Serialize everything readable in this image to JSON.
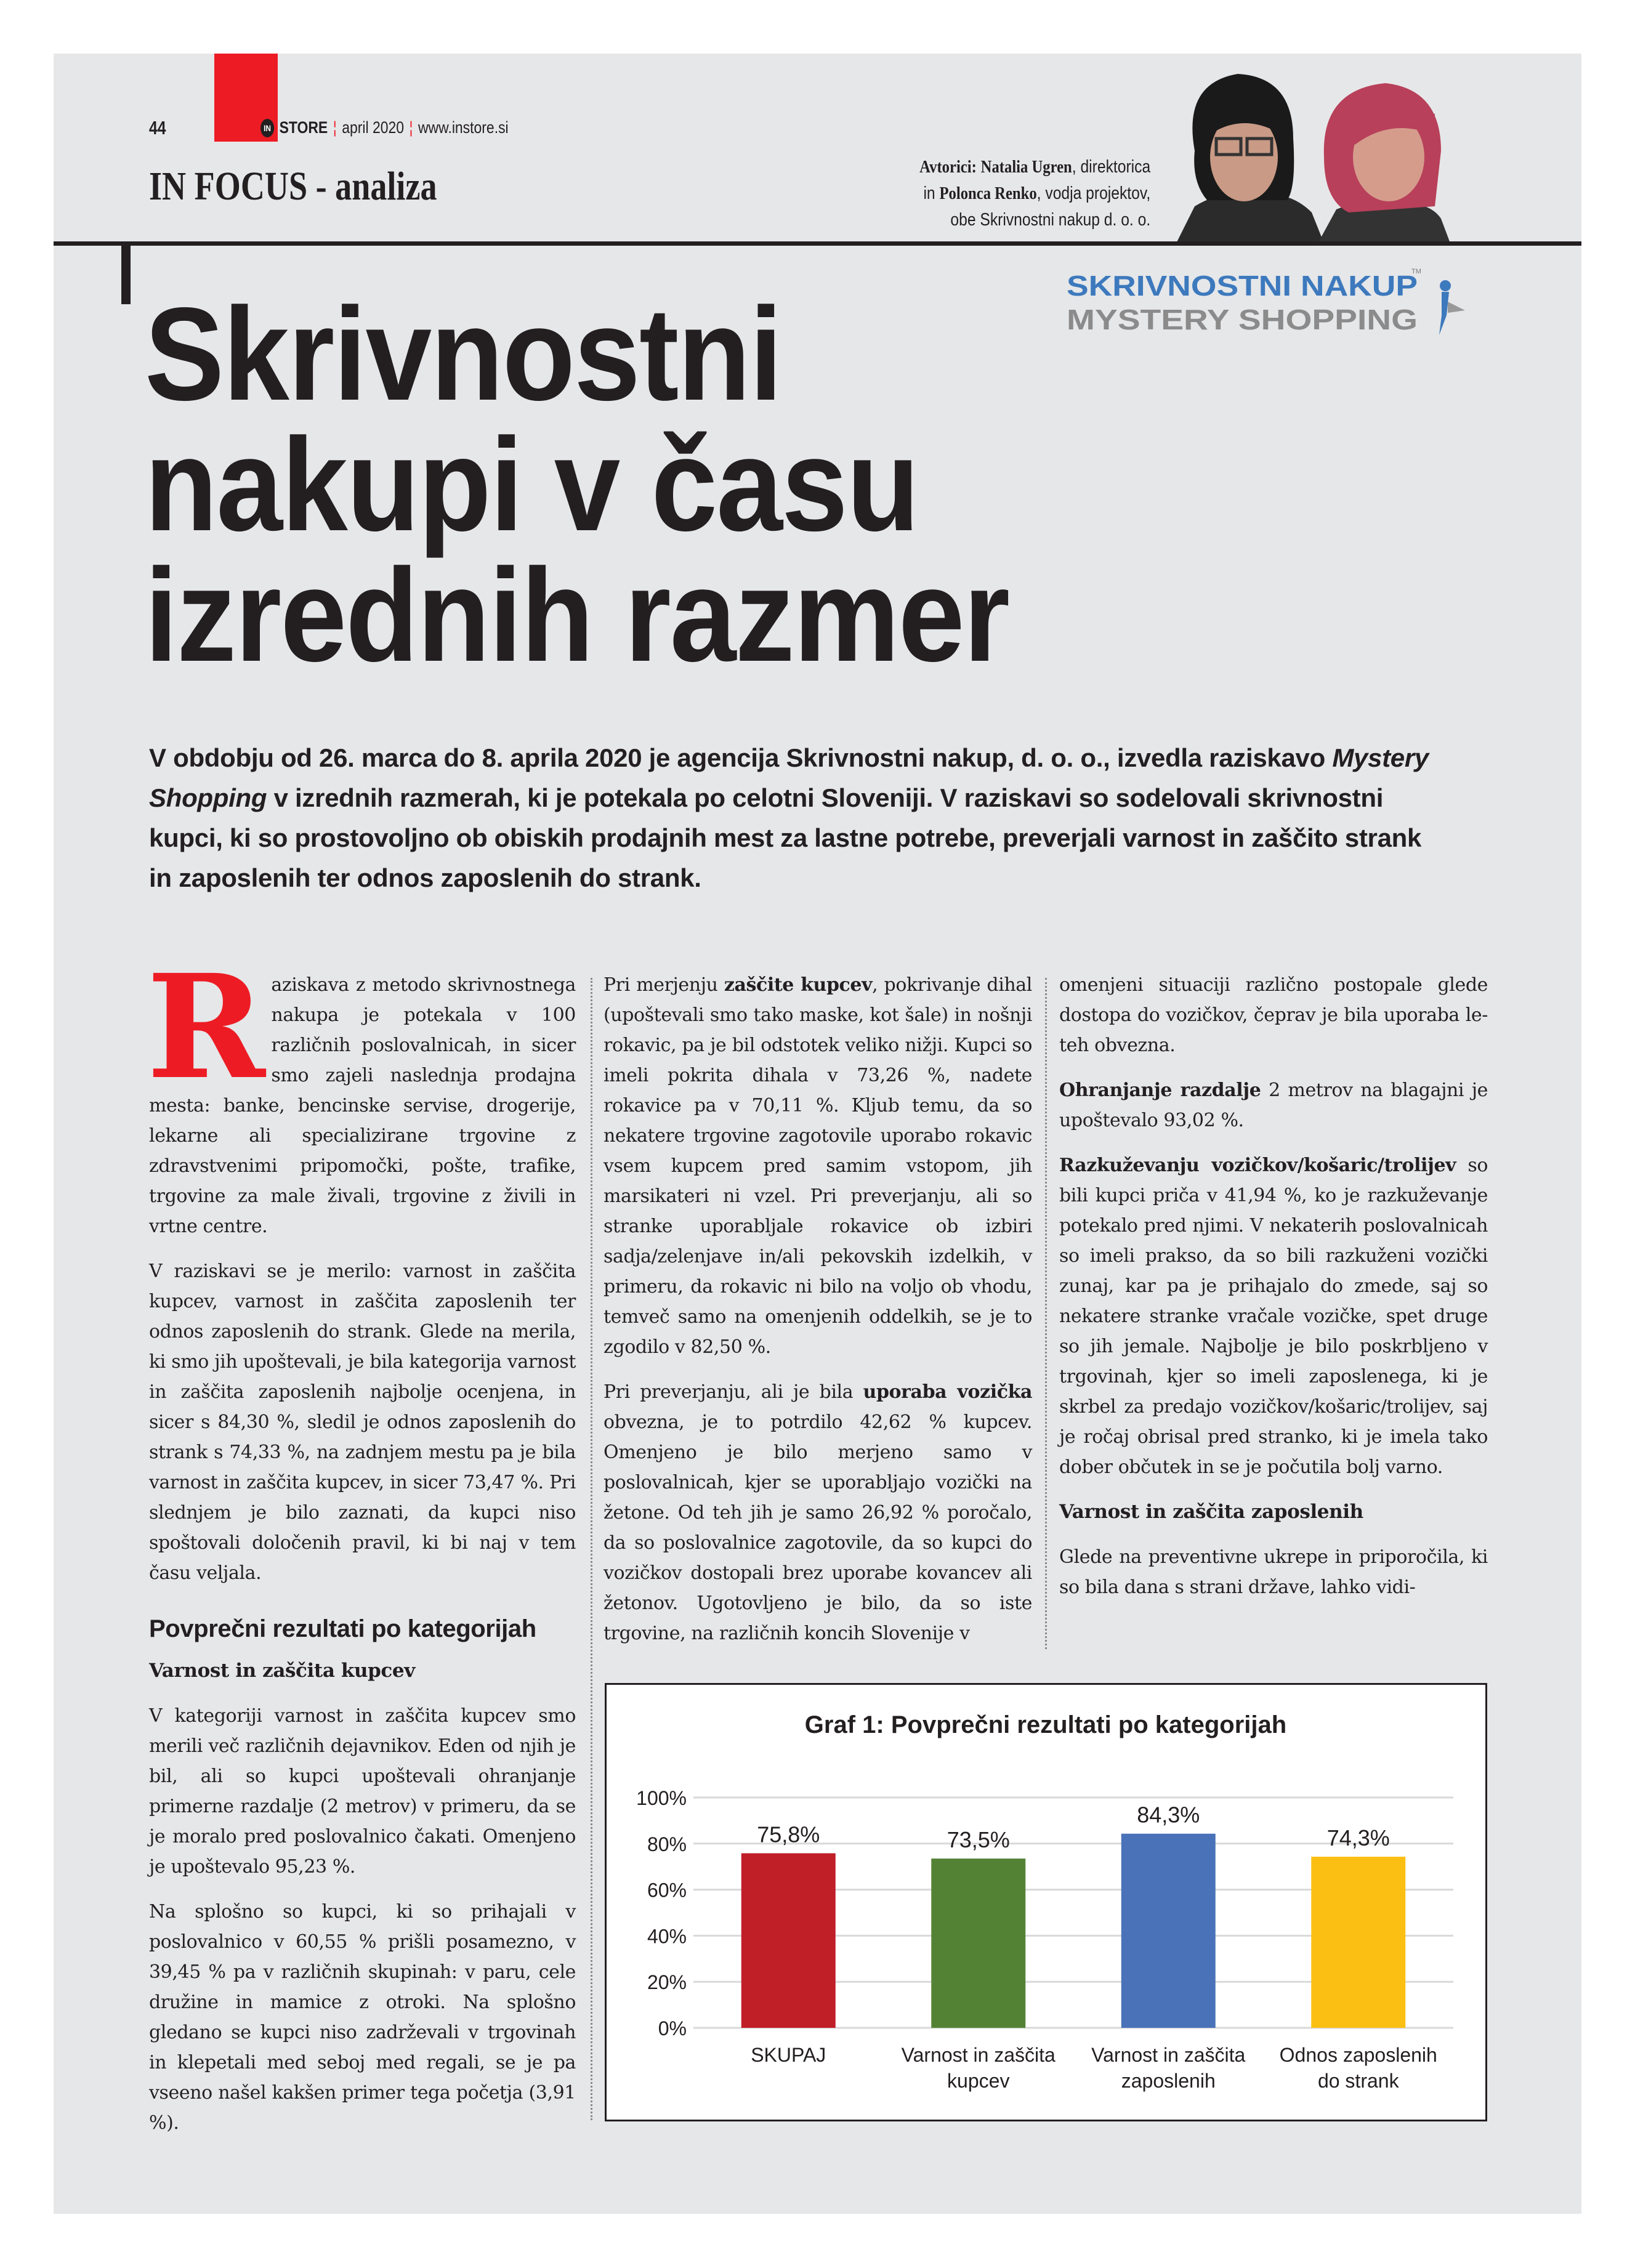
{
  "header": {
    "page_number": "44",
    "brand_badge": "IN",
    "brand": "STORE",
    "issue": "april 2020",
    "website": "www.instore.si",
    "section": "IN FOCUS - analiza",
    "accent_color": "#ed1c24"
  },
  "authors": {
    "label": "Avtorici:",
    "author1": "Natalia Ugren",
    "author1_role": ", direktorica",
    "joiner": "in ",
    "author2": "Polonca Renko",
    "author2_role": ", vodja projektov,",
    "company_line": "obe Skrivnostni nakup d. o. o."
  },
  "logo": {
    "line1": "SKRIVNOSTNI NAKUP",
    "line2": "MYSTERY SHOPPING",
    "tm": "TM"
  },
  "article": {
    "title_lines": [
      "Skrivnostni",
      "nakupi v času",
      "izrednih razmer"
    ],
    "lead": [
      {
        "t": "V obdobju od 26. marca do 8. aprila 2020 je agencija Skrivnostni nakup, d. o. o., izvedla raziskavo "
      },
      {
        "t": "Mystery Shopping",
        "i": true
      },
      {
        "t": " v izrednih razmerah, ki je potekala po celotni Sloveniji. V raziskavi so sodelovali skrivnostni kupci, ki so prostovoljno ob obiskih prodajnih mest za lastne potrebe, preverjali varnost in zaščito strank in zaposlenih ter odnos zaposlenih do strank."
      }
    ],
    "drop_cap": "R",
    "col1": [
      {
        "type": "p",
        "runs": [
          {
            "t": "aziskava z metodo skrivnostnega nakupa je potekala v 100 različnih poslovalnicah, in sicer smo zajeli naslednja prodajna mesta: banke, bencinske servise, drogerije, lekarne ali specializirane trgovine z zdravstvenimi pripomočki, pošte, trafike, trgovine za male živali, trgovine z živili in vrtne centre."
          }
        ]
      },
      {
        "type": "p",
        "runs": [
          {
            "t": "V raziskavi se je merilo: varnost in zaščita kupcev, varnost in zaščita zaposlenih ter odnos zaposlenih do strank. Glede na merila, ki smo jih upoštevali, je bila kategorija varnost in zaščita zaposlenih najbolje ocenjena, in sicer s 84,30 %, sledil je odnos zaposlenih do strank s 74,33 %, na zadnjem mestu pa je bila varnost in zaščita kupcev, in sicer 73,47 %. Pri slednjem je bilo zaznati, da kupci niso spoštovali določenih pravil, ki bi naj v tem času veljala."
          }
        ]
      },
      {
        "type": "h-sans",
        "text": "Povprečni rezultati po kategorijah"
      },
      {
        "type": "h-serif",
        "text": "Varnost in zaščita kupcev"
      },
      {
        "type": "p",
        "runs": [
          {
            "t": "V kategoriji varnost in zaščita kupcev smo merili več različnih dejavnikov. Eden od njih je bil, ali so kupci upoštevali ohranjanje primerne razdalje (2 metrov) v primeru, da se je moralo pred poslovalnico čakati. Omenjeno je upoštevalo 95,23 %."
          }
        ]
      },
      {
        "type": "p",
        "runs": [
          {
            "t": "Na splošno so kupci, ki so prihajali v poslovalnico v 60,55 % prišli posamezno, v 39,45 % pa v različnih skupinah: v paru, cele družine in mamice z otroki. Na splošno gledano se kupci niso zadrževali v trgovinah in klepetali med seboj med regali, se je pa vseeno našel kakšen primer tega početja (3,91 %)."
          }
        ]
      }
    ],
    "col2": [
      {
        "type": "p",
        "runs": [
          {
            "t": "Pri merjenju "
          },
          {
            "t": "zaščite kupcev",
            "b": true
          },
          {
            "t": ", pokrivanje dihal (upoštevali smo tako maske, kot šale) in nošnji rokavic, pa je bil odstotek veliko nižji. Kupci so imeli pokrita dihala v 73,26 %, nadete rokavice pa v 70,11 %. Kljub temu, da so nekatere trgovine zagotovile uporabo rokavic vsem kupcem pred samim vstopom, jih marsikateri ni vzel. Pri preverjanju, ali so stranke uporabljale rokavice ob izbiri sadja/zelenjave in/ali pekovskih izdelkih, v primeru, da rokavic ni bilo na voljo ob vhodu, temveč samo na omenjenih oddelkih, se je to zgodilo v 82,50 %."
          }
        ]
      },
      {
        "type": "p",
        "runs": [
          {
            "t": "Pri preverjanju, ali je bila "
          },
          {
            "t": "uporaba vozička",
            "b": true
          },
          {
            "t": " obvezna, je to potrdilo 42,62 % kupcev. Omenjeno je bilo merjeno samo v poslovalnicah, kjer se uporabljajo vozički na žetone. Od teh jih je samo 26,92 % poročalo, da so poslovalnice zagotovile, da so kupci do vozičkov dostopali brez uporabe kovancev ali žetonov. Ugotovljeno je bilo, da so iste trgovine, na različnih koncih Slovenije v"
          }
        ]
      }
    ],
    "col3": [
      {
        "type": "p",
        "runs": [
          {
            "t": "omenjeni situaciji različno postopale glede dostopa do vozičkov, čeprav je bila uporaba le-teh obvezna."
          }
        ]
      },
      {
        "type": "p",
        "runs": [
          {
            "t": "Ohranjanje razdalje",
            "b": true
          },
          {
            "t": " 2 metrov na blagajni je upoštevalo 93,02 %."
          }
        ]
      },
      {
        "type": "p",
        "runs": [
          {
            "t": "Razkuževanju vozičkov/košaric/trolijev",
            "b": true
          },
          {
            "t": " so bili kupci priča v 41,94 %, ko je razkuževanje potekalo pred njimi. V nekaterih poslovalnicah so imeli prakso, da so bili razkuženi vozički zunaj, kar pa je prihajalo do zmede, saj so nekatere stranke vračale vozičke, spet druge so jih jemale. Najbolje je bilo poskrbljeno v trgovinah, kjer so imeli zaposlenega, ki je skrbel za predajo vozičkov/košaric/trolijev, saj je ročaj obrisal pred stranko, ki je imela tako dober občutek in se je počutila bolj varno."
          }
        ]
      },
      {
        "type": "h-serif",
        "text": "Varnost in zaščita zaposlenih"
      },
      {
        "type": "p",
        "runs": [
          {
            "t": "Glede na preventivne ukrepe in priporočila, ki so bila dana s strani države, lahko vidi-"
          }
        ]
      }
    ]
  },
  "chart_data": {
    "type": "bar",
    "title": "Graf 1: Povprečni rezultati po kategorijah",
    "categories": [
      [
        "SKUPAJ"
      ],
      [
        "Varnost in zaščita",
        "kupcev"
      ],
      [
        "Varnost in zaščita",
        "zaposlenih"
      ],
      [
        "Odnos zaposlenih",
        "do strank"
      ]
    ],
    "values": [
      75.8,
      73.5,
      84.3,
      74.3
    ],
    "data_labels": [
      "75,8%",
      "73,5%",
      "84,3%",
      "74,3%"
    ],
    "colors": [
      "#c01f28",
      "#548235",
      "#4a72b8",
      "#fbbf13"
    ],
    "y_ticks": [
      "0%",
      "20%",
      "40%",
      "60%",
      "80%",
      "100%"
    ],
    "ylim": [
      0,
      100
    ],
    "xlabel": "",
    "ylabel": "",
    "grid": true,
    "legend": "none"
  }
}
